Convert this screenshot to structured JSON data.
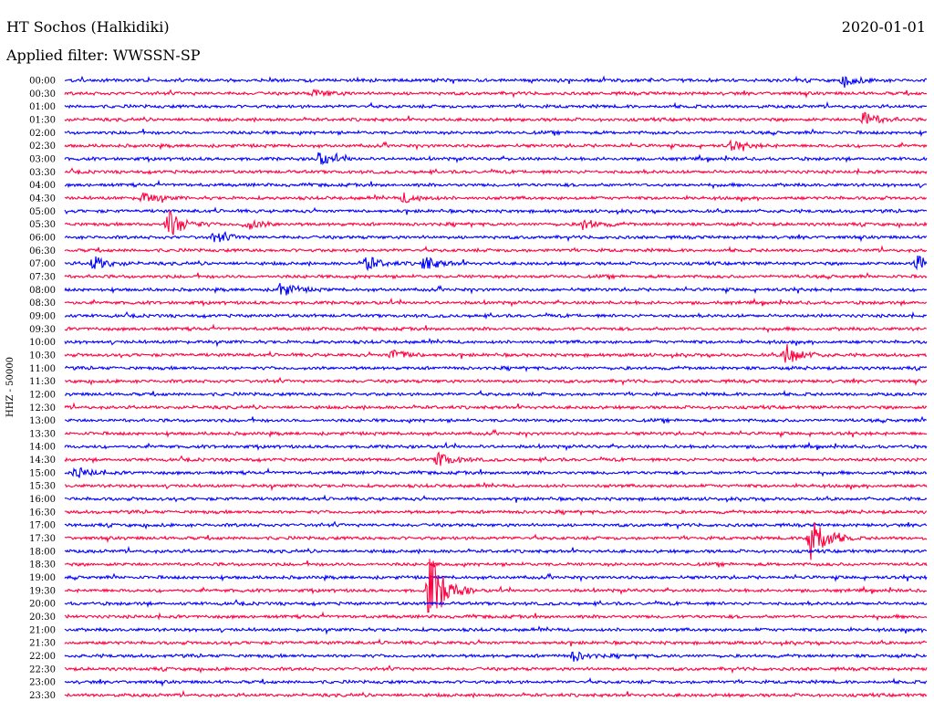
{
  "header": {
    "station": "HT Sochos (Halkidiki)",
    "date": "2020-01-01",
    "filter": "Applied filter: WWSSN-SP"
  },
  "chart_data": {
    "type": "line",
    "title": "HT Sochos (Halkidiki)",
    "ylabel": "HHZ - 50000",
    "colors": [
      "#0000ff",
      "#ff0040"
    ],
    "rows": [
      "00:00",
      "00:30",
      "01:00",
      "01:30",
      "02:00",
      "02:30",
      "03:00",
      "03:30",
      "04:00",
      "04:30",
      "05:00",
      "05:30",
      "06:00",
      "06:30",
      "07:00",
      "07:30",
      "08:00",
      "08:30",
      "09:00",
      "09:30",
      "10:00",
      "10:30",
      "11:00",
      "11:30",
      "12:00",
      "12:30",
      "13:00",
      "13:30",
      "14:00",
      "14:30",
      "15:00",
      "15:30",
      "16:00",
      "16:30",
      "17:00",
      "17:30",
      "18:00",
      "18:30",
      "19:00",
      "19:30",
      "20:00",
      "20:30",
      "21:00",
      "21:30",
      "22:00",
      "22:30",
      "23:00",
      "23:30"
    ],
    "events": [
      {
        "row": "00:00",
        "minute": 27.1,
        "amplitude": 6
      },
      {
        "row": "00:30",
        "minute": 8.7,
        "amplitude": 4
      },
      {
        "row": "01:30",
        "minute": 27.8,
        "amplitude": 8
      },
      {
        "row": "02:30",
        "minute": 23.2,
        "amplitude": 5
      },
      {
        "row": "03:00",
        "minute": 8.8,
        "amplitude": 8
      },
      {
        "row": "04:30",
        "minute": 2.7,
        "amplitude": 6
      },
      {
        "row": "04:30",
        "minute": 11.8,
        "amplitude": 5
      },
      {
        "row": "05:30",
        "minute": 3.6,
        "amplitude": 16
      },
      {
        "row": "05:30",
        "minute": 6.3,
        "amplitude": 6
      },
      {
        "row": "05:30",
        "minute": 18.0,
        "amplitude": 6
      },
      {
        "row": "06:00",
        "minute": 5.2,
        "amplitude": 6
      },
      {
        "row": "07:00",
        "minute": 1.0,
        "amplitude": 8
      },
      {
        "row": "07:00",
        "minute": 10.5,
        "amplitude": 8
      },
      {
        "row": "07:00",
        "minute": 12.5,
        "amplitude": 8
      },
      {
        "row": "07:00",
        "minute": 29.6,
        "amplitude": 10
      },
      {
        "row": "08:00",
        "minute": 7.5,
        "amplitude": 8
      },
      {
        "row": "10:30",
        "minute": 25.1,
        "amplitude": 12
      },
      {
        "row": "10:30",
        "minute": 11.4,
        "amplitude": 6
      },
      {
        "row": "14:30",
        "minute": 13.0,
        "amplitude": 8
      },
      {
        "row": "15:00",
        "minute": 0.4,
        "amplitude": 6
      },
      {
        "row": "17:30",
        "minute": 25.9,
        "amplitude": 34
      },
      {
        "row": "19:30",
        "minute": 12.7,
        "amplitude": 42
      },
      {
        "row": "22:00",
        "minute": 17.7,
        "amplitude": 5
      }
    ]
  }
}
